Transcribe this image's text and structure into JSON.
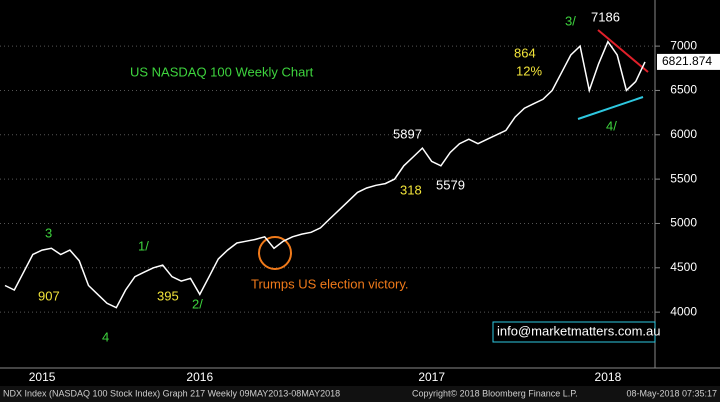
{
  "chart_data": {
    "type": "line",
    "title": "US NASDAQ 100 Weekly Chart",
    "color": "#ffffff",
    "categories": [
      null,
      null,
      null,
      null,
      "2015",
      null,
      null,
      null,
      null,
      null,
      null,
      null,
      null,
      null,
      null,
      null,
      null,
      null,
      null,
      null,
      null,
      "2016",
      null,
      null,
      null,
      null,
      null,
      null,
      null,
      null,
      null,
      null,
      null,
      null,
      null,
      null,
      null,
      null,
      null,
      null,
      null,
      null,
      null,
      null,
      null,
      null,
      "2017",
      null,
      null,
      null,
      null,
      null,
      null,
      null,
      null,
      null,
      null,
      null,
      null,
      null,
      null,
      null,
      null,
      null,
      null,
      "2018",
      null,
      null,
      null,
      null
    ],
    "values": [
      4300,
      4250,
      4450,
      4650,
      4700,
      4720,
      4650,
      4700,
      4580,
      4300,
      4200,
      4100,
      4050,
      4250,
      4400,
      4450,
      4500,
      4530,
      4400,
      4350,
      4380,
      4200,
      4400,
      4600,
      4700,
      4780,
      4800,
      4820,
      4850,
      4720,
      4800,
      4850,
      4880,
      4900,
      4950,
      5050,
      5150,
      5250,
      5350,
      5400,
      5430,
      5450,
      5500,
      5650,
      5750,
      5850,
      5700,
      5650,
      5800,
      5900,
      5950,
      5900,
      5950,
      6000,
      6050,
      6200,
      6300,
      6350,
      6400,
      6500,
      6700,
      6900,
      7000,
      6500,
      6800,
      7050,
      6900,
      6500,
      6600,
      6821.874
    ],
    "ylim": [
      3370,
      7520
    ],
    "yticks": [
      4000,
      4500,
      5000,
      5500,
      6000,
      6500,
      7000
    ],
    "grid": true,
    "annotations": [
      "907",
      "395",
      "318",
      "864",
      "12%",
      "5897",
      "5579",
      "7186",
      "3",
      "4",
      "1/",
      "2/",
      "3/",
      "4/",
      "Trumps US election victory.",
      "info@marketmatters.com.au"
    ],
    "footer": [
      "NDX Index (NASDAQ 100 Stock Index) Graph 217  Weekly 09MAY2013-08MAY2018",
      "Copyright© 2018 Bloomberg Finance L.P.",
      "08-May-2018 07:35:17"
    ]
  }
}
